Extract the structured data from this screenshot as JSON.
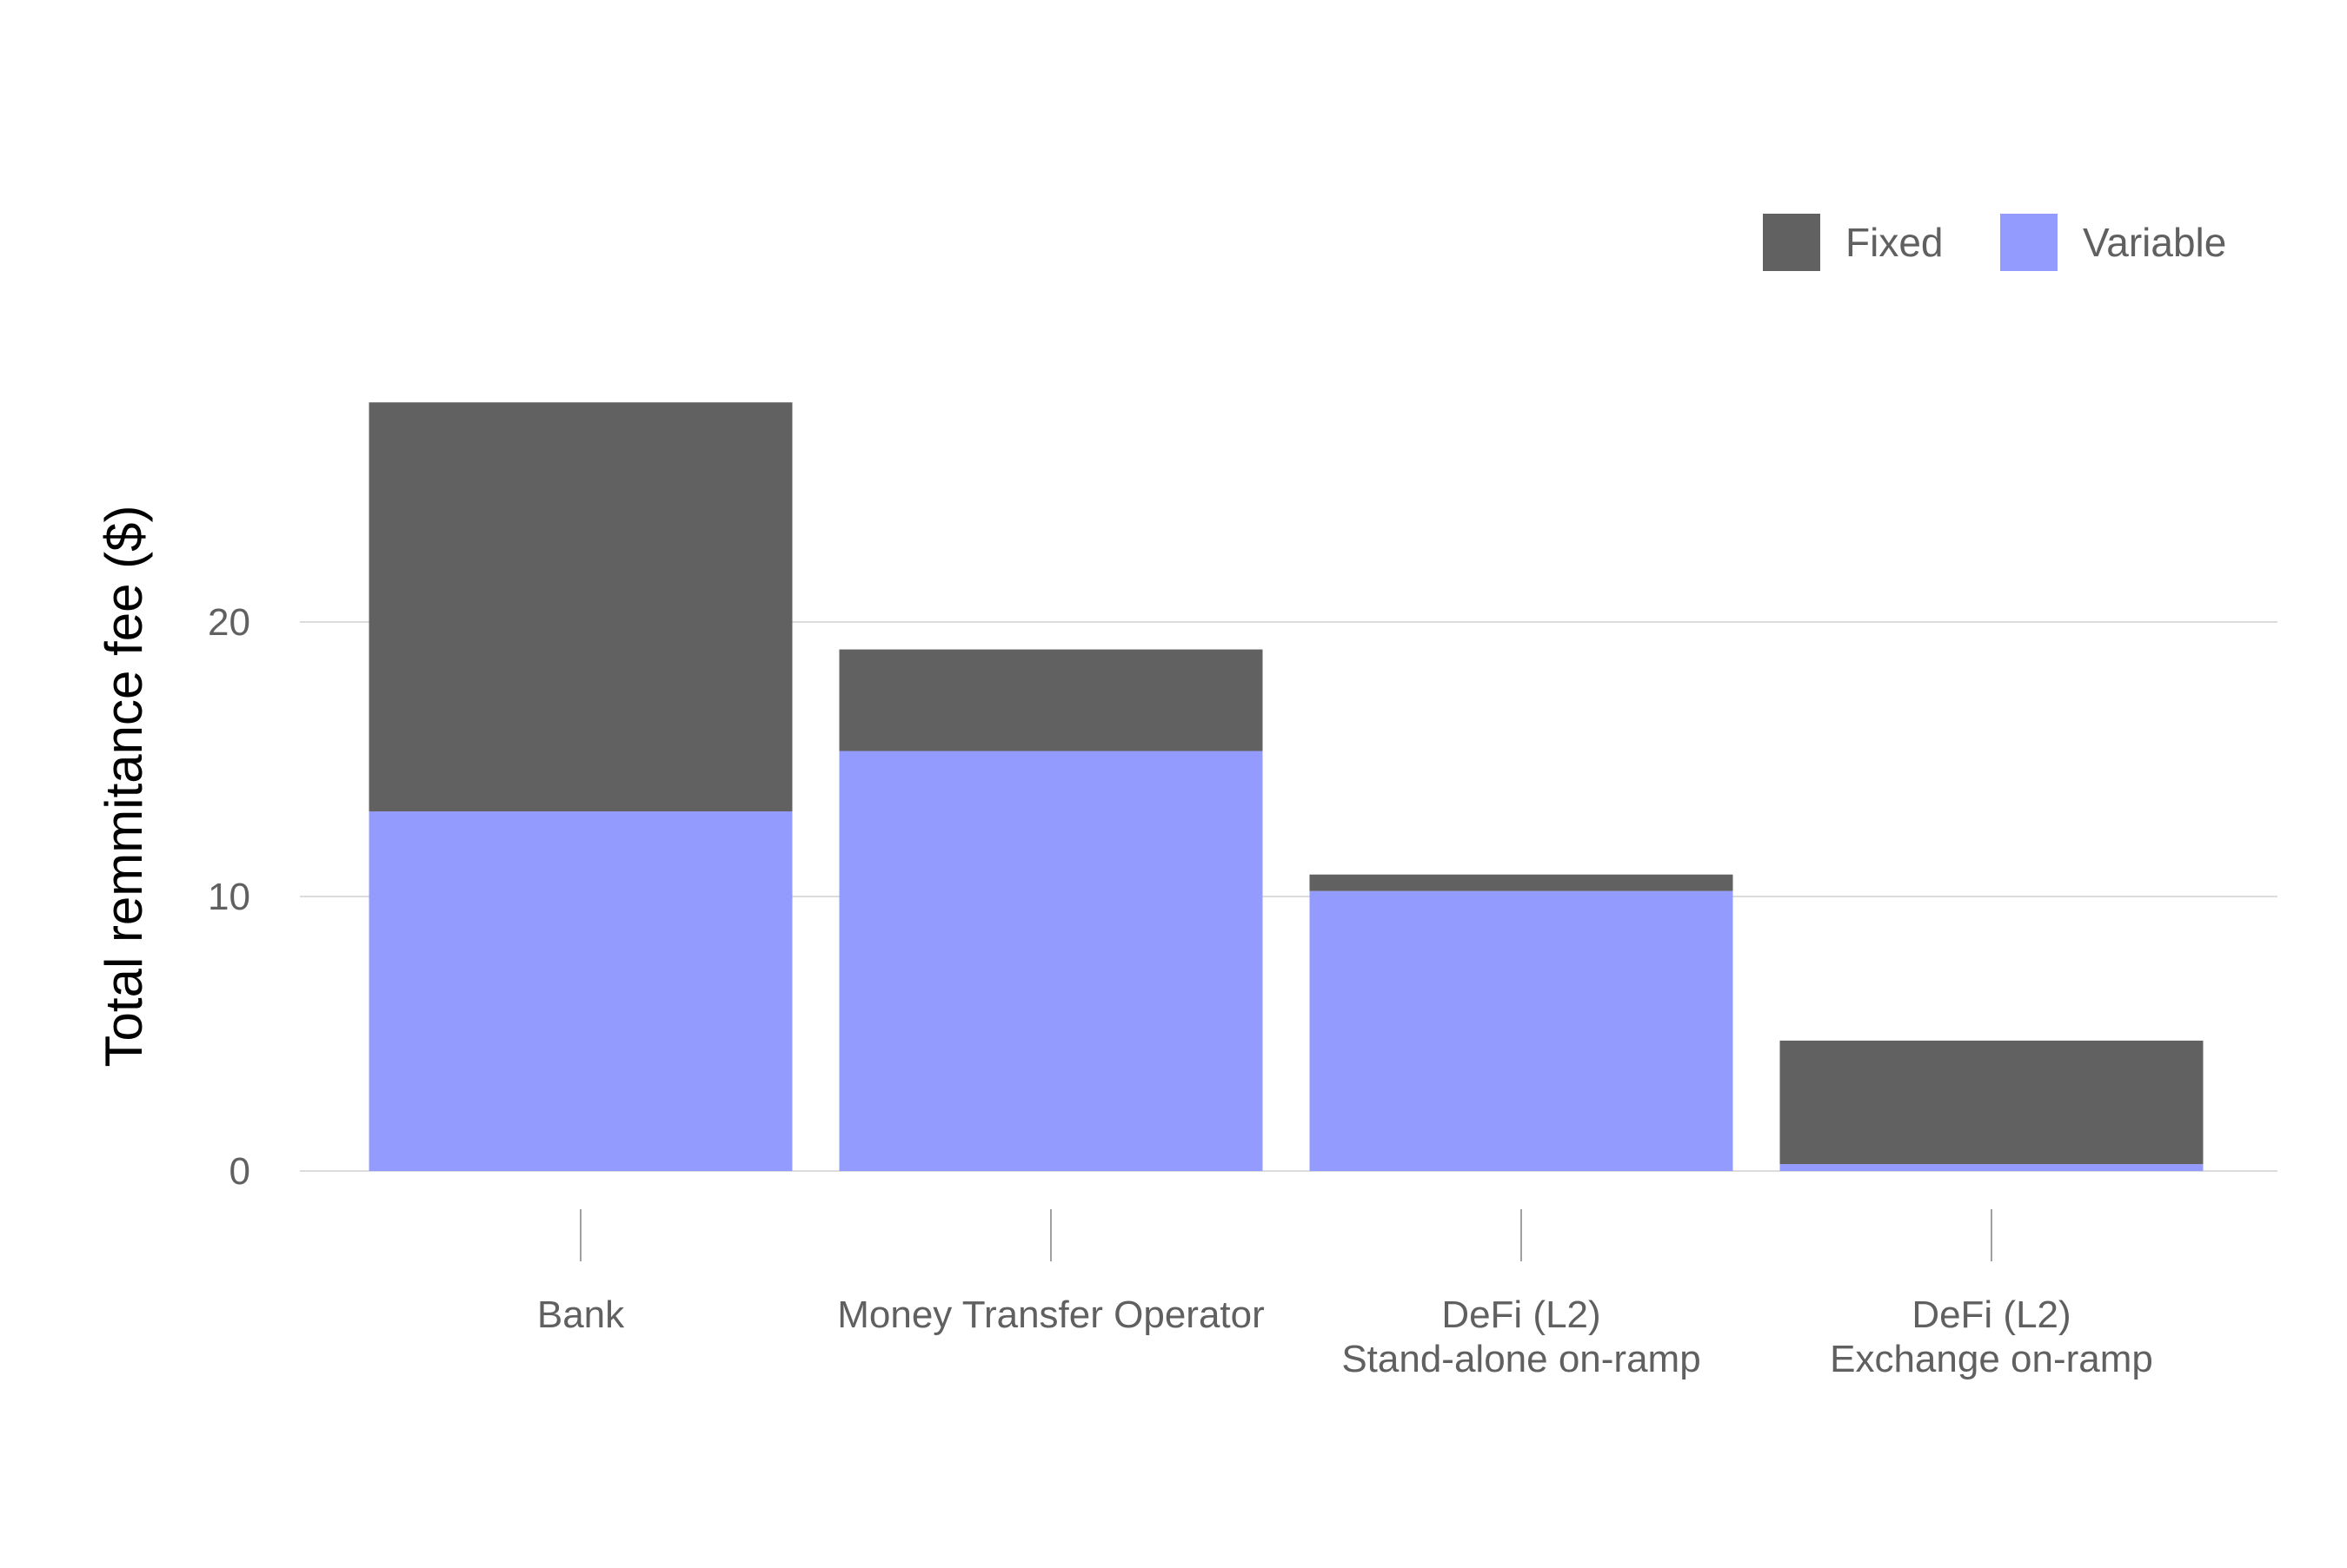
{
  "chart_data": {
    "type": "bar",
    "stacked": true,
    "categories": [
      [
        "Bank"
      ],
      [
        "Money Transfer Operator"
      ],
      [
        "DeFi (L2)",
        "Stand-alone on-ramp"
      ],
      [
        "DeFi (L2)",
        "Exchange on-ramp"
      ]
    ],
    "series": [
      {
        "name": "Variable",
        "color": "#949bff",
        "values": [
          13.1,
          15.3,
          10.2,
          0.25
        ]
      },
      {
        "name": "Fixed",
        "color": "#616161",
        "values": [
          14.9,
          3.7,
          0.6,
          4.5
        ]
      }
    ],
    "legend_order": [
      "Fixed",
      "Variable"
    ],
    "title": "",
    "xlabel": "",
    "ylabel": "Total remmitance fee ($)",
    "ylim": [
      0,
      28
    ],
    "yticks": [
      0,
      10,
      20
    ],
    "grid": "horizontal",
    "legend_position": "top-right"
  }
}
